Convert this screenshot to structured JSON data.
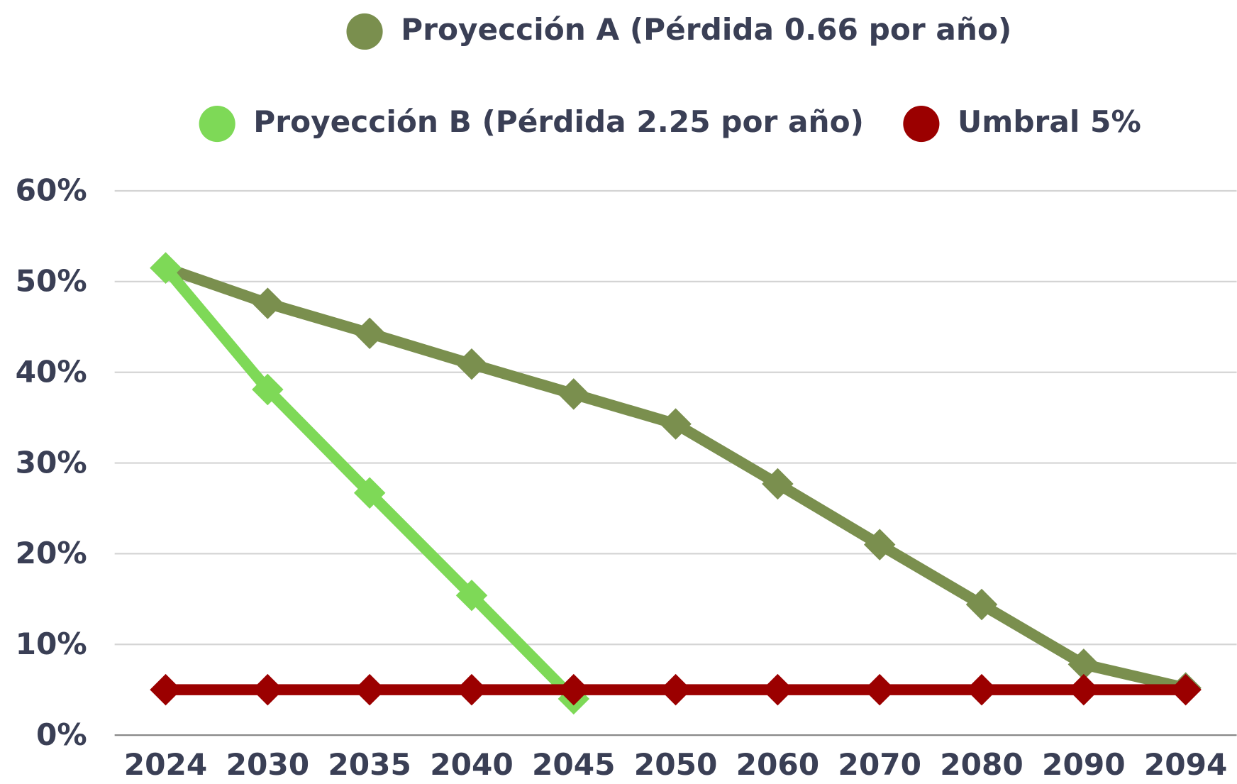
{
  "chart_data": {
    "type": "line",
    "categories": [
      "2024",
      "2030",
      "2035",
      "2040",
      "2045",
      "2050",
      "2060",
      "2070",
      "2080",
      "2090",
      "2094"
    ],
    "series": [
      {
        "name": "Proyección A (Pérdida 0.66 por año)",
        "color": "#7a8f4e",
        "values": [
          51.5,
          47.6,
          44.3,
          40.9,
          37.6,
          34.3,
          27.7,
          21.0,
          14.4,
          7.8,
          5.2
        ]
      },
      {
        "name": "Proyección B (Pérdida 2.25 por año)",
        "color": "#7ed957",
        "values": [
          51.5,
          38.1,
          26.7,
          15.4,
          4.0,
          null,
          null,
          null,
          null,
          null,
          null
        ]
      },
      {
        "name": "Umbral 5%",
        "color": "#9b0000",
        "values": [
          5,
          5,
          5,
          5,
          5,
          5,
          5,
          5,
          5,
          5,
          5
        ]
      }
    ],
    "ylim": [
      0,
      60
    ],
    "yticks": [
      {
        "value": 0,
        "label": "0%"
      },
      {
        "value": 10,
        "label": "10%"
      },
      {
        "value": 20,
        "label": "20%"
      },
      {
        "value": 30,
        "label": "30%"
      },
      {
        "value": 40,
        "label": "40%"
      },
      {
        "value": 50,
        "label": "50%"
      },
      {
        "value": 60,
        "label": "60%"
      }
    ],
    "grid": true
  }
}
